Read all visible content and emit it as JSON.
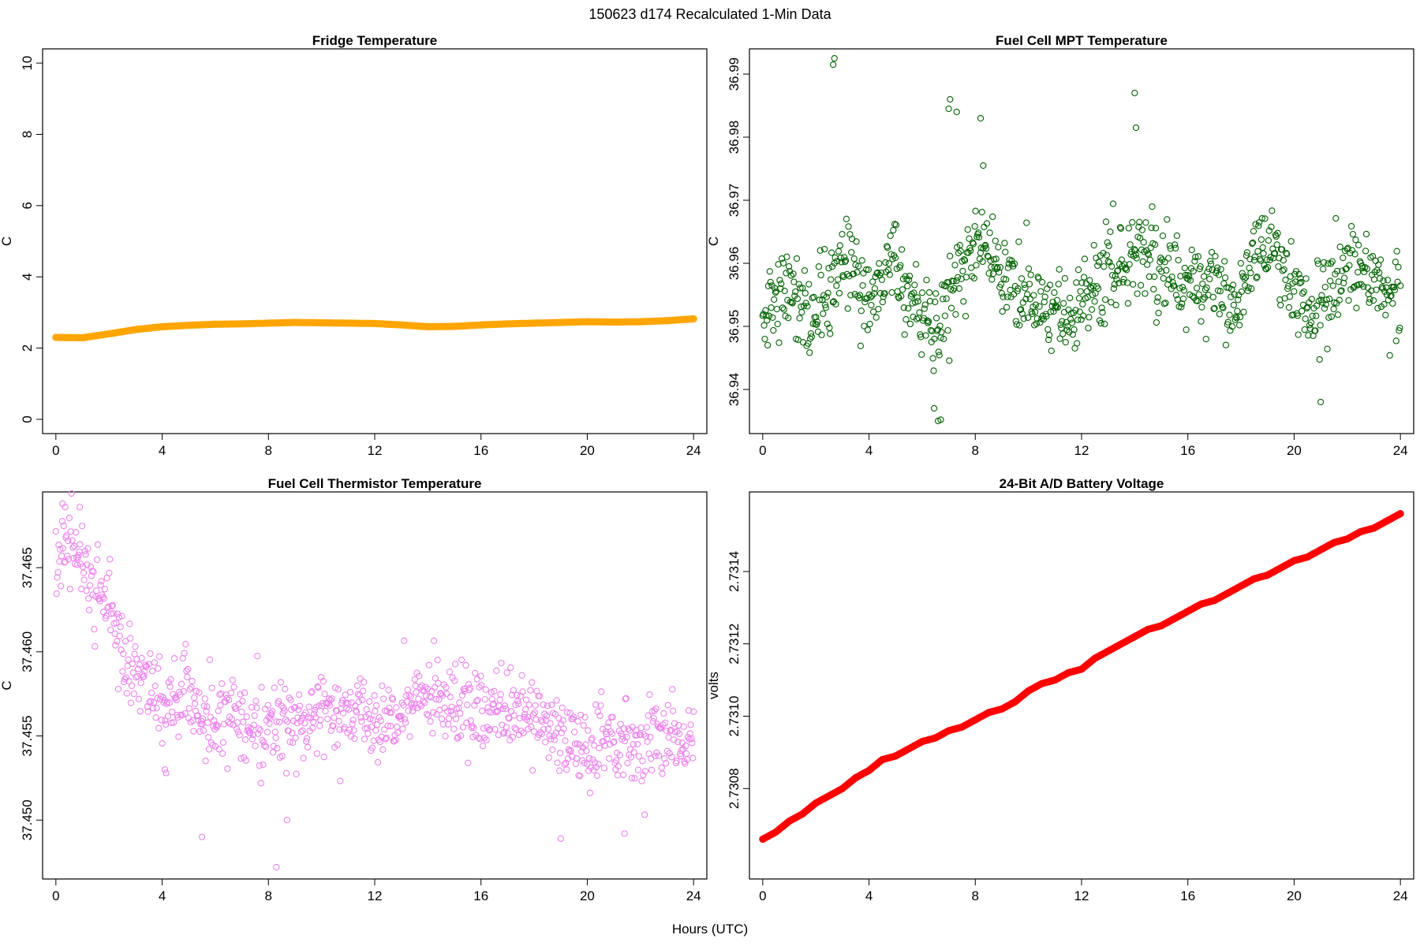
{
  "figure": {
    "title": "150623   d174   Recalculated 1-Min Data",
    "xlabel": "Hours (UTC)"
  },
  "chart_data": [
    {
      "id": "fridge",
      "type": "line",
      "title": "Fridge Temperature",
      "ylabel": "C",
      "xlim": [
        -0.5,
        24.5
      ],
      "ylim": [
        -0.4,
        10.4
      ],
      "xticks": [
        0,
        4,
        8,
        12,
        16,
        20,
        24
      ],
      "yticks": [
        0,
        2,
        4,
        6,
        8,
        10
      ],
      "ytick_labels": [
        "0",
        "2",
        "4",
        "6",
        "8",
        "10"
      ],
      "color": "#FFA500",
      "style": "thick-line",
      "x": [
        0,
        1,
        2,
        3,
        4,
        5,
        6,
        7,
        8,
        9,
        10,
        11,
        12,
        13,
        14,
        15,
        16,
        17,
        18,
        19,
        20,
        21,
        22,
        23,
        24
      ],
      "y": [
        2.3,
        2.29,
        2.4,
        2.52,
        2.6,
        2.64,
        2.67,
        2.68,
        2.7,
        2.72,
        2.71,
        2.7,
        2.69,
        2.65,
        2.6,
        2.61,
        2.65,
        2.68,
        2.7,
        2.72,
        2.74,
        2.73,
        2.74,
        2.77,
        2.82
      ]
    },
    {
      "id": "mpt",
      "type": "scatter",
      "title": "Fuel Cell MPT Temperature",
      "ylabel": "C",
      "xlim": [
        -0.5,
        24.5
      ],
      "ylim": [
        36.933,
        36.994
      ],
      "xticks": [
        0,
        4,
        8,
        12,
        16,
        20,
        24
      ],
      "yticks": [
        36.94,
        36.95,
        36.96,
        36.97,
        36.98,
        36.99
      ],
      "ytick_labels": [
        "36.94",
        "36.95",
        "36.96",
        "36.97",
        "36.98",
        "36.99"
      ],
      "color": "#006400",
      "style": "open-circles",
      "trend_x": [
        0,
        0.8,
        1.8,
        2.5,
        3.3,
        4.1,
        4.8,
        5.6,
        6.5,
        7.3,
        8.2,
        9.0,
        10.1,
        11.0,
        12.0,
        13.0,
        14.2,
        15.1,
        16.3,
        17.1,
        17.8,
        18.5,
        19.2,
        19.9,
        20.6,
        21.3,
        22.0,
        22.8,
        23.6,
        24
      ],
      "trend_y": [
        36.952,
        36.958,
        36.95,
        36.957,
        36.96,
        36.954,
        36.961,
        36.955,
        36.948,
        36.958,
        36.964,
        36.957,
        36.955,
        36.951,
        36.955,
        36.958,
        36.962,
        36.959,
        36.957,
        36.956,
        36.952,
        36.961,
        36.963,
        36.956,
        36.952,
        36.955,
        36.961,
        36.958,
        36.954,
        36.956
      ],
      "spread": 0.0045,
      "n_points": 1440,
      "outliers_x": [
        2.65,
        2.7,
        7.0,
        7.05,
        7.3,
        8.2,
        8.3,
        14.0,
        14.05,
        6.45,
        6.6,
        6.7,
        21.0
      ],
      "outliers_y": [
        36.9915,
        36.9925,
        36.9845,
        36.986,
        36.984,
        36.983,
        36.9755,
        36.987,
        36.9815,
        36.937,
        36.935,
        36.9352,
        36.938
      ]
    },
    {
      "id": "thermistor",
      "type": "scatter",
      "title": "Fuel Cell Thermistor Temperature",
      "ylabel": "C",
      "xlim": [
        -0.5,
        24.5
      ],
      "ylim": [
        37.4465,
        37.4695
      ],
      "xticks": [
        0,
        4,
        8,
        12,
        16,
        20,
        24
      ],
      "yticks": [
        37.45,
        37.455,
        37.46,
        37.465
      ],
      "ytick_labels": [
        "37.450",
        "37.455",
        "37.460",
        "37.465"
      ],
      "color": "#EE82EE",
      "style": "open-circles",
      "trend_x": [
        0,
        0.5,
        1.0,
        1.5,
        2.0,
        2.5,
        3.0,
        3.5,
        4.0,
        4.5,
        5.0,
        5.5,
        6.0,
        7.0,
        8.0,
        9.0,
        10.0,
        11.0,
        12.0,
        13.0,
        14.0,
        15.0,
        16.0,
        17.0,
        18.0,
        19.0,
        20.0,
        21.0,
        22.0,
        23.0,
        24.0
      ],
      "trend_y": [
        37.4655,
        37.466,
        37.465,
        37.464,
        37.4625,
        37.46,
        37.459,
        37.458,
        37.457,
        37.457,
        37.458,
        37.456,
        37.456,
        37.456,
        37.4555,
        37.4555,
        37.4565,
        37.456,
        37.456,
        37.4565,
        37.457,
        37.457,
        37.4565,
        37.4565,
        37.456,
        37.455,
        37.4545,
        37.4545,
        37.4545,
        37.4545,
        37.455
      ],
      "spread": 0.0016,
      "n_points": 1440,
      "outliers_x": [
        0.25,
        0.35,
        0.9,
        5.5,
        8.3,
        8.7,
        19.0,
        21.4,
        4.1,
        4.15
      ],
      "outliers_y": [
        37.4688,
        37.4686,
        37.4686,
        37.449,
        37.4472,
        37.45,
        37.4489,
        37.4492,
        37.453,
        37.4528
      ]
    },
    {
      "id": "battery",
      "type": "line",
      "title": "24-Bit A/D Battery Voltage",
      "ylabel": "volts",
      "xlim": [
        -0.5,
        24.5
      ],
      "ylim": [
        2.73055,
        2.73162
      ],
      "xticks": [
        0,
        4,
        8,
        12,
        16,
        20,
        24
      ],
      "yticks": [
        2.7308,
        2.731,
        2.7312,
        2.7314
      ],
      "ytick_labels": [
        "2.7308",
        "2.7310",
        "2.7312",
        "2.7314"
      ],
      "color": "#FF0000",
      "style": "thick-line",
      "x": [
        0,
        0.5,
        1,
        1.5,
        2,
        2.5,
        3,
        3.5,
        4,
        4.5,
        5,
        5.5,
        6,
        6.5,
        7,
        7.5,
        8,
        8.5,
        9,
        9.5,
        10,
        10.5,
        11,
        11.5,
        12,
        12.5,
        13,
        13.5,
        14,
        14.5,
        15,
        15.5,
        16,
        16.5,
        17,
        17.5,
        18,
        18.5,
        19,
        19.5,
        20,
        20.5,
        21,
        21.5,
        22,
        22.5,
        23,
        23.5,
        24
      ],
      "y": [
        2.73066,
        2.73068,
        2.73071,
        2.73073,
        2.73076,
        2.73078,
        2.7308,
        2.73083,
        2.73085,
        2.73088,
        2.73089,
        2.73091,
        2.73093,
        2.73094,
        2.73096,
        2.73097,
        2.73099,
        2.73101,
        2.73102,
        2.73104,
        2.73107,
        2.73109,
        2.7311,
        2.73112,
        2.73113,
        2.73116,
        2.73118,
        2.7312,
        2.73122,
        2.73124,
        2.73125,
        2.73127,
        2.73129,
        2.73131,
        2.73132,
        2.73134,
        2.73136,
        2.73138,
        2.73139,
        2.73141,
        2.73143,
        2.73144,
        2.73146,
        2.73148,
        2.73149,
        2.73151,
        2.73152,
        2.73154,
        2.73156
      ]
    }
  ]
}
